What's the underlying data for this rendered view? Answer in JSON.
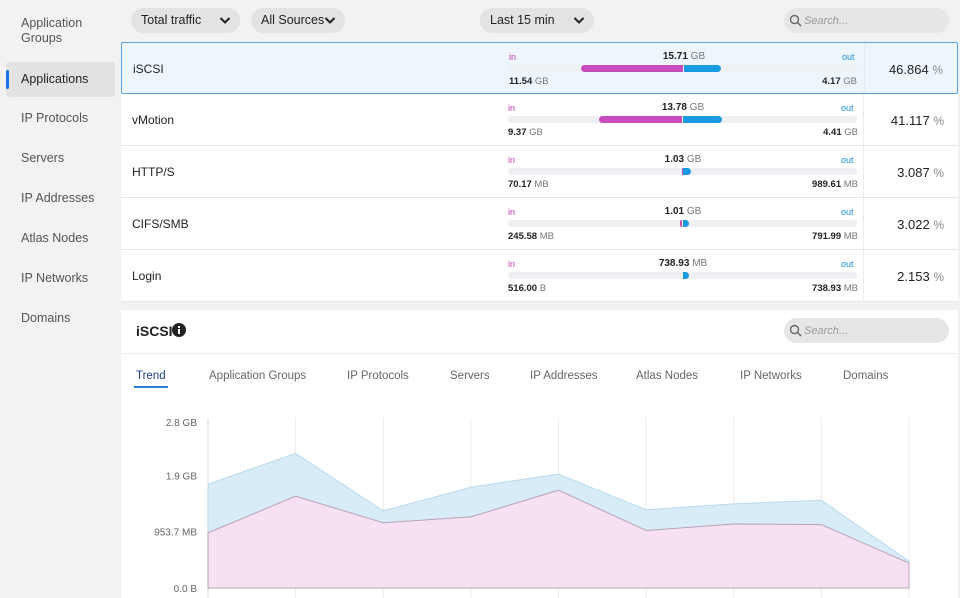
{
  "sidebar": {
    "items": [
      {
        "label": "Application\nGroups",
        "l1": "Application",
        "l2": "Groups"
      },
      {
        "label": "Applications"
      },
      {
        "label": "IP Protocols"
      },
      {
        "label": "Servers"
      },
      {
        "label": "IP Addresses"
      },
      {
        "label": "Atlas Nodes"
      },
      {
        "label": "IP Networks"
      },
      {
        "label": "Domains"
      }
    ]
  },
  "toolbar": {
    "traffic_filter": "Total traffic",
    "sources_filter": "All Sources",
    "time_range": "Last 15 min",
    "search_placeholder": "Search..."
  },
  "table": {
    "in_label": "in",
    "out_label": "out",
    "rows": [
      {
        "name": "iSCSI",
        "total": "15.71",
        "total_unit": "GB",
        "in": "11.54",
        "in_unit": "GB",
        "out": "4.17",
        "out_unit": "GB",
        "in_fraction": 0.734,
        "out_fraction": 0.266,
        "scale": 1.0,
        "percent": "46.864",
        "selected": true
      },
      {
        "name": "vMotion",
        "total": "13.78",
        "total_unit": "GB",
        "in": "9.37",
        "in_unit": "GB",
        "out": "4.41",
        "out_unit": "GB",
        "in_fraction": 0.68,
        "out_fraction": 0.32,
        "scale": 0.877,
        "percent": "41.117",
        "selected": false
      },
      {
        "name": "HTTP/S",
        "total": "1.03",
        "total_unit": "GB",
        "in": "70.17",
        "in_unit": "MB",
        "out": "989.61",
        "out_unit": "MB",
        "in_fraction": 0.066,
        "out_fraction": 0.934,
        "scale": 0.066,
        "percent": "3.087",
        "selected": false
      },
      {
        "name": "CIFS/SMB",
        "total": "1.01",
        "total_unit": "GB",
        "in": "245.58",
        "in_unit": "MB",
        "out": "791.99",
        "out_unit": "MB",
        "in_fraction": 0.237,
        "out_fraction": 0.763,
        "scale": 0.064,
        "percent": "3.022",
        "selected": false
      },
      {
        "name": "Login",
        "total": "738.93",
        "total_unit": "MB",
        "in": "516.00",
        "in_unit": "B",
        "out": "738.93",
        "out_unit": "MB",
        "in_fraction": 0.0,
        "out_fraction": 1.0,
        "scale": 0.047,
        "percent": "2.153",
        "selected": false
      }
    ],
    "percent_unit": "%"
  },
  "detail": {
    "title": "iSCSI",
    "search_placeholder": "Search...",
    "tabs": [
      "Trend",
      "Application Groups",
      "IP Protocols",
      "Servers",
      "IP Addresses",
      "Atlas Nodes",
      "IP Networks",
      "Domains"
    ],
    "active_tab": "Trend"
  },
  "chart_data": {
    "type": "area",
    "yticks": [
      "2.8 GB",
      "1.9 GB",
      "953.7 MB",
      "0.0 B"
    ],
    "ylim_gb": [
      0,
      2.8
    ],
    "x": [
      0,
      1,
      2,
      3,
      4,
      5,
      6,
      7,
      8
    ],
    "series": [
      {
        "values_gb": [
          0.93,
          1.55,
          1.1,
          1.2,
          1.65,
          0.97,
          1.08,
          1.07,
          0.42
        ],
        "color": "#f6e0f2"
      },
      {
        "values_gb": [
          1.75,
          2.27,
          1.3,
          1.7,
          1.92,
          1.32,
          1.42,
          1.48,
          0.45
        ],
        "color": "#d8ecf7"
      }
    ],
    "grid": "vertical"
  },
  "colors": {
    "accent": "#1a73e8",
    "in": "#c94cbc",
    "out": "#1a9ae0"
  }
}
